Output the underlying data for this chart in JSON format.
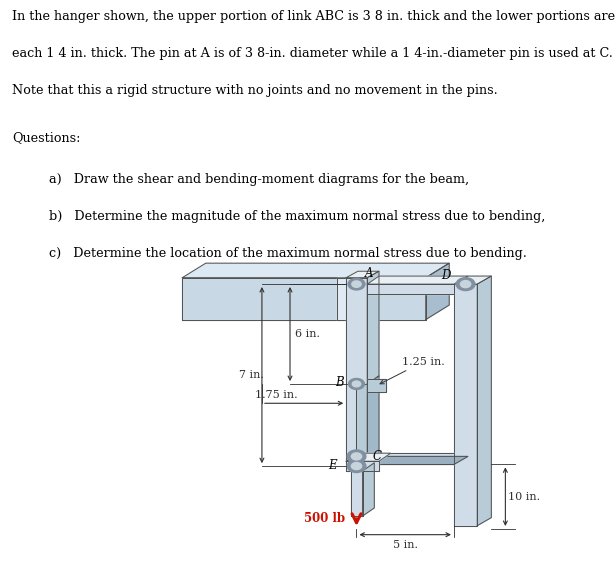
{
  "background_color": "#f5f3f0",
  "fig_width": 6.16,
  "fig_height": 5.7,
  "para1": "In the hanger shown, the upper portion of link ABC is 3 8 in. thick and the lower portions are",
  "para2": "each 1 4 in. thick. The pin at A is of 3 8-in. diameter while a 1 4-in.-diameter pin is used at C.",
  "para3": "Note that this a rigid structure with no joints and no movement in the pins.",
  "questions_label": "Questions:",
  "q_a": "a)   Draw the shear and bending-moment diagrams for the beam,",
  "q_b": "b)   Determine the magnitude of the maximum normal stress due to bending,",
  "q_c": "c)   Determine the location of the maximum normal stress due to bending.",
  "diagram_bg": "#ddd8d0",
  "label_A": "A",
  "label_B": "B",
  "label_C": "C",
  "label_D": "D",
  "label_E": "E",
  "dim_6in": "6 in.",
  "dim_7in": "7 in.",
  "dim_175in": "1.75 in.",
  "dim_125in": "1.25 in.",
  "dim_10in": "10 in.",
  "dim_5in": "5 in.",
  "force_label": "500 lb",
  "force_color": "#cc1100",
  "steel_light": "#d0dce8",
  "steel_mid": "#b8ccd8",
  "steel_dark": "#94afc0",
  "steel_top": "#e8f0f5",
  "beam_light": "#c8d8e4",
  "beam_top": "#dce8f2",
  "beam_side": "#a8bece"
}
